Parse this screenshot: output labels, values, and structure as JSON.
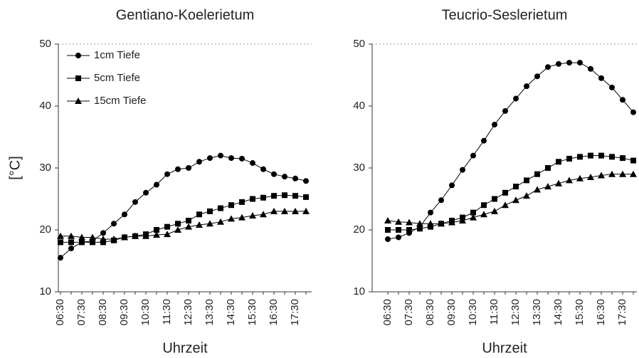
{
  "chart_data": [
    {
      "type": "line",
      "title": "Gentiano-Koelerietum",
      "xlabel": "Uhrzeit",
      "ylabel": "[°C]",
      "legend": "upper left",
      "categories": [
        "06:30",
        null,
        "07:30",
        null,
        "08:30",
        null,
        "09:30",
        null,
        "10:30",
        null,
        "11:30",
        null,
        "12:30",
        null,
        "13:30",
        null,
        "14:30",
        null,
        "15:30",
        null,
        "16:30",
        null,
        "17:30",
        null
      ],
      "ylim": [
        10,
        50
      ],
      "yticks": [
        10,
        20,
        30,
        40,
        50
      ],
      "series": [
        {
          "name": "1cm Tiefe",
          "color": "#000000",
          "marker": "circle",
          "values": [
            15.5,
            17,
            18,
            18.2,
            19.5,
            21,
            22.5,
            24.5,
            26,
            27.3,
            29,
            29.8,
            30,
            31,
            31.6,
            32,
            31.6,
            31.5,
            30.8,
            29.8,
            29,
            28.6,
            28.3,
            27.9
          ]
        },
        {
          "name": "5cm Tiefe",
          "color": "#000000",
          "marker": "square",
          "values": [
            18,
            18,
            18,
            18,
            18,
            18.3,
            18.8,
            19,
            19.3,
            20,
            20.5,
            21,
            21.5,
            22.5,
            23,
            23.5,
            24,
            24.5,
            25,
            25.2,
            25.5,
            25.6,
            25.5,
            25.3
          ]
        },
        {
          "name": "15cm Tiefe",
          "color": "#000000",
          "marker": "triangle",
          "values": [
            19,
            19,
            18.8,
            18.8,
            18.5,
            18.5,
            18.8,
            19,
            19,
            19.2,
            19.3,
            20,
            20.5,
            20.8,
            21,
            21.3,
            21.8,
            22,
            22.3,
            22.5,
            23,
            23,
            23,
            23
          ]
        }
      ]
    },
    {
      "type": "line",
      "title": "Teucrio-Seslerietum",
      "xlabel": "Uhrzeit",
      "categories": [
        "06:30",
        null,
        "07:30",
        null,
        "08:30",
        null,
        "09:30",
        null,
        "10:30",
        null,
        "11:30",
        null,
        "12:30",
        null,
        "13:30",
        null,
        "14:30",
        null,
        "15:30",
        null,
        "16:30",
        null,
        "17:30",
        null
      ],
      "ylim": [
        10,
        50
      ],
      "yticks": [
        10,
        20,
        30,
        40,
        50
      ],
      "series": [
        {
          "color": "#000000",
          "marker": "circle",
          "values": [
            18.5,
            18.8,
            19.5,
            20.5,
            22.8,
            24.8,
            27.2,
            29.7,
            32,
            34.4,
            37,
            39.2,
            41.2,
            43.2,
            44.8,
            46.3,
            46.8,
            47,
            47,
            46,
            44.5,
            43,
            41,
            39
          ]
        },
        {
          "color": "#000000",
          "marker": "square",
          "values": [
            20,
            20,
            20,
            20.2,
            20.5,
            21,
            21.5,
            22,
            22.8,
            24,
            25,
            26,
            27,
            28,
            29,
            30,
            31,
            31.5,
            31.8,
            32,
            32,
            31.8,
            31.6,
            31.2
          ]
        },
        {
          "color": "#000000",
          "marker": "triangle",
          "values": [
            21.5,
            21.3,
            21.2,
            21,
            21,
            21,
            21.2,
            21.5,
            22,
            22.5,
            23,
            24,
            24.8,
            25.5,
            26.5,
            27,
            27.5,
            28,
            28.3,
            28.5,
            28.8,
            29,
            29,
            29
          ]
        }
      ]
    }
  ]
}
